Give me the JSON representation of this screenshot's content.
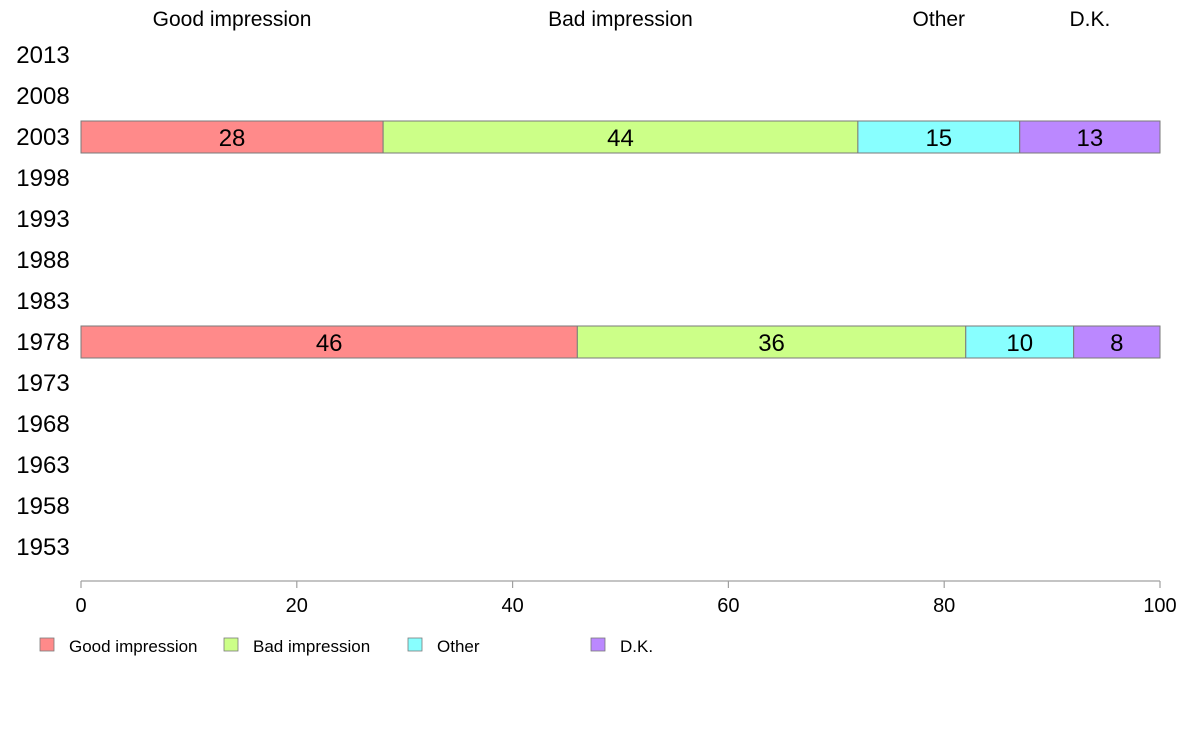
{
  "chart_data": {
    "type": "bar",
    "orientation": "horizontal",
    "stacked": true,
    "categories": [
      "2013",
      "2008",
      "2003",
      "1998",
      "1993",
      "1988",
      "1983",
      "1978",
      "1973",
      "1968",
      "1963",
      "1958",
      "1953"
    ],
    "series": [
      {
        "name": "Good impression",
        "color": "#ff8a8a",
        "values": [
          null,
          null,
          28,
          null,
          null,
          null,
          null,
          46,
          null,
          null,
          null,
          null,
          null
        ]
      },
      {
        "name": "Bad impression",
        "color": "#ccff88",
        "values": [
          null,
          null,
          44,
          null,
          null,
          null,
          null,
          36,
          null,
          null,
          null,
          null,
          null
        ]
      },
      {
        "name": "Other",
        "color": "#88ffff",
        "values": [
          null,
          null,
          15,
          null,
          null,
          null,
          null,
          10,
          null,
          null,
          null,
          null,
          null
        ]
      },
      {
        "name": "D.K.",
        "color": "#bb88ff",
        "values": [
          null,
          null,
          13,
          null,
          null,
          null,
          null,
          8,
          null,
          null,
          null,
          null,
          null
        ]
      }
    ],
    "header_labels": [
      "Good impression",
      "Bad impression",
      "Other",
      "D.K."
    ],
    "xlim": [
      0,
      100
    ],
    "xticks": [
      "0",
      "20",
      "40",
      "60",
      "80",
      "100"
    ],
    "grid": false,
    "legend_position": "bottom-left",
    "title": "",
    "xlabel": "",
    "ylabel": ""
  }
}
